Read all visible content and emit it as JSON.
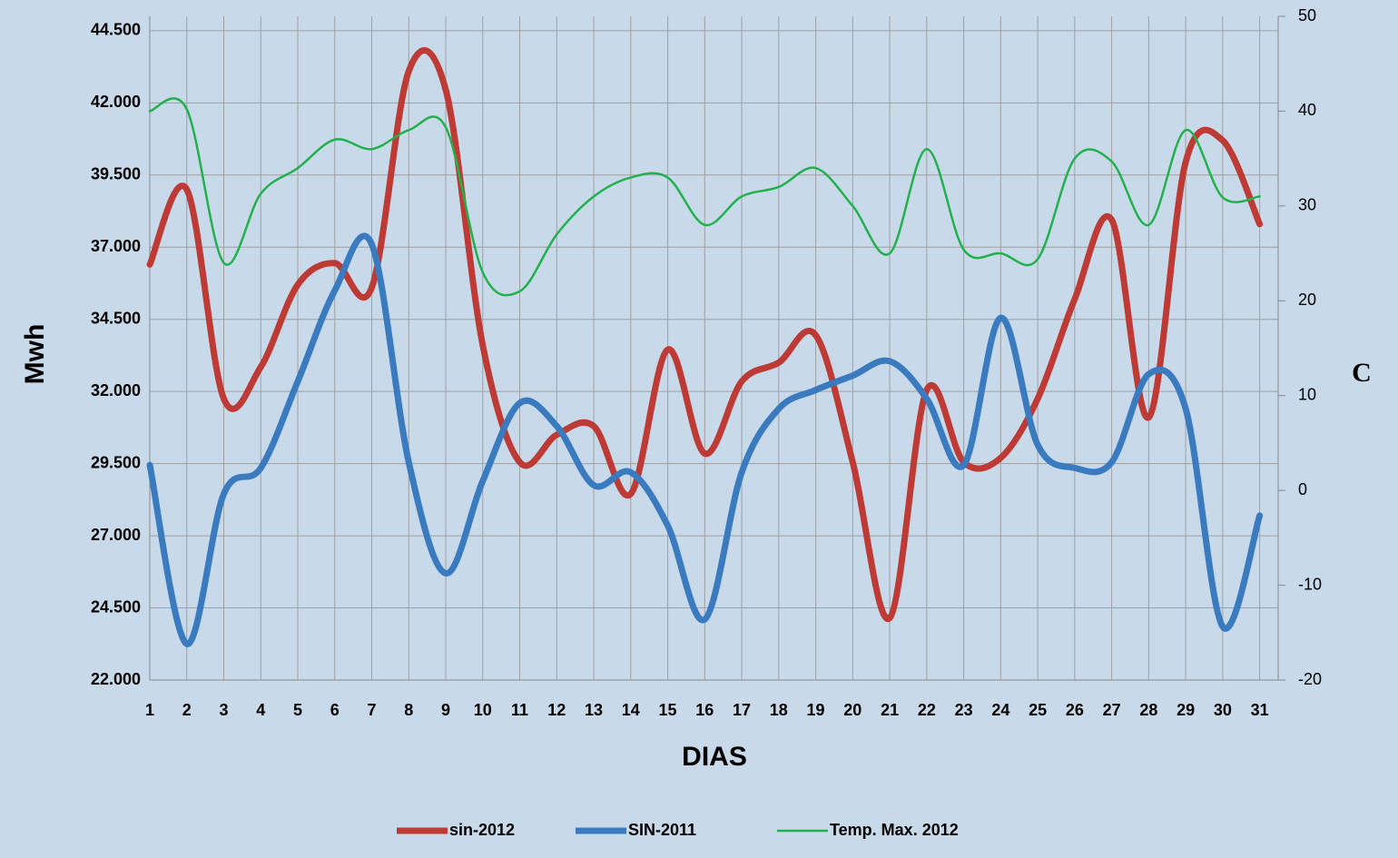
{
  "chart_data": {
    "type": "line",
    "x_label": "DIAS",
    "y_label": "Mwh",
    "y2_label": "C",
    "categories": [
      "1",
      "2",
      "3",
      "4",
      "5",
      "6",
      "7",
      "8",
      "9",
      "10",
      "11",
      "12",
      "13",
      "14",
      "15",
      "16",
      "17",
      "18",
      "19",
      "20",
      "21",
      "22",
      "23",
      "24",
      "25",
      "26",
      "27",
      "28",
      "29",
      "30",
      "31"
    ],
    "series": [
      {
        "name": "sin-2012",
        "color": "#be3a34",
        "width": 7,
        "values": [
          36400,
          39000,
          31750,
          32850,
          35700,
          36450,
          35600,
          43100,
          42450,
          33600,
          29550,
          30500,
          30800,
          28450,
          33450,
          29850,
          32350,
          33000,
          33950,
          29550,
          24150,
          32050,
          29550,
          29700,
          31750,
          35200,
          37950,
          31100,
          39950,
          40700,
          37800
        ]
      },
      {
        "name": "SIN-2011",
        "color": "#3a7bbf",
        "width": 7,
        "values": [
          29450,
          23250,
          28450,
          29350,
          32350,
          35500,
          37100,
          29550,
          25700,
          28900,
          31600,
          30800,
          28750,
          29200,
          27350,
          24100,
          29200,
          31400,
          32050,
          32550,
          33050,
          31750,
          29450,
          34550,
          30150,
          29350,
          29550,
          32600,
          31400,
          23850,
          27700
        ]
      },
      {
        "name": "Temp. Max. 2012",
        "color": "#22b14c",
        "width": 2.5,
        "axis": "y2",
        "values": [
          40,
          40.2,
          24,
          31.3,
          34,
          37,
          36,
          38,
          38.3,
          23,
          21,
          27,
          31,
          33,
          33,
          28,
          31,
          32,
          34,
          30,
          25,
          36,
          25.4,
          25,
          24.4,
          35,
          34.7,
          28,
          38,
          30.9,
          31
        ]
      }
    ],
    "ylim": [
      22000,
      45000
    ],
    "yticks": [
      {
        "value": 22000,
        "label": "22.000"
      },
      {
        "value": 24500,
        "label": "24.500"
      },
      {
        "value": 27000,
        "label": "27.000"
      },
      {
        "value": 29500,
        "label": "29.500"
      },
      {
        "value": 32000,
        "label": "32.000"
      },
      {
        "value": 34500,
        "label": "34.500"
      },
      {
        "value": 37000,
        "label": "37.000"
      },
      {
        "value": 39500,
        "label": "39.500"
      },
      {
        "value": 42000,
        "label": "42.000"
      },
      {
        "value": 44500,
        "label": "44.500"
      }
    ],
    "y2lim": [
      -20,
      50
    ],
    "y2ticks": [
      -20,
      -10,
      0,
      10,
      20,
      30,
      40,
      50
    ],
    "grid": true,
    "legend": "bottom"
  }
}
